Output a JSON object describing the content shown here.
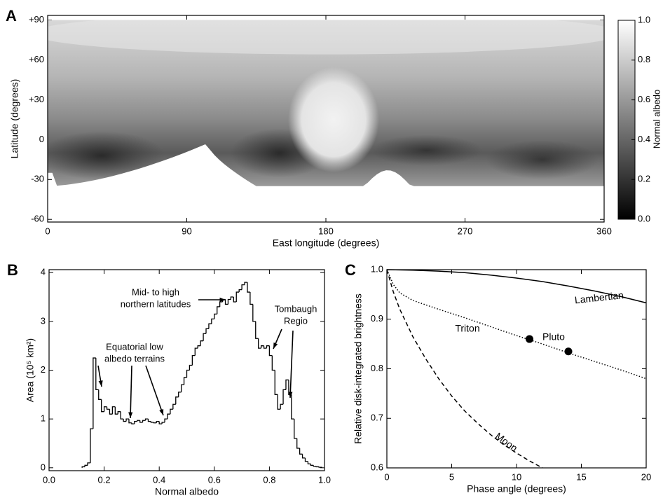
{
  "chart_data": [
    {
      "type": "map",
      "panel": "A",
      "xlabel": "East longitude (degrees)",
      "ylabel": "Latitude (degrees)",
      "xlim": [
        0,
        360
      ],
      "ylim": [
        -62,
        93.5
      ],
      "xticks": [
        0,
        90,
        180,
        270,
        360
      ],
      "yticks": [
        {
          "value": 90,
          "label": "+90"
        },
        {
          "value": 60,
          "label": "+60"
        },
        {
          "value": 30,
          "label": "+30"
        },
        0,
        -30,
        -60
      ],
      "colorbar": {
        "label": "Normal albedo",
        "lim": [
          0,
          1
        ],
        "ticks": [
          {
            "value": 0,
            "label": "0.0"
          },
          0.2,
          0.4,
          0.6,
          0.8,
          {
            "value": 1,
            "label": "1.0"
          }
        ]
      }
    },
    {
      "type": "histogram",
      "panel": "B",
      "xlabel": "Normal albedo",
      "ylabel": "Area (10⁵ km²)",
      "xlim": [
        0,
        1
      ],
      "ylim": [
        -0.06,
        4.06
      ],
      "xticks": [
        {
          "value": 0,
          "label": "0.0"
        },
        0.2,
        0.4,
        0.6,
        0.8,
        {
          "value": 1,
          "label": "1.0"
        }
      ],
      "yticks": [
        0,
        1,
        2,
        3,
        4
      ],
      "bins": [
        0.12,
        0.13,
        0.14,
        0.15,
        0.16,
        0.17,
        0.18,
        0.19,
        0.2,
        0.21,
        0.22,
        0.23,
        0.24,
        0.25,
        0.26,
        0.27,
        0.28,
        0.29,
        0.3,
        0.31,
        0.32,
        0.33,
        0.34,
        0.35,
        0.36,
        0.37,
        0.38,
        0.39,
        0.4,
        0.41,
        0.42,
        0.43,
        0.44,
        0.45,
        0.46,
        0.47,
        0.48,
        0.49,
        0.5,
        0.51,
        0.52,
        0.53,
        0.54,
        0.55,
        0.56,
        0.57,
        0.58,
        0.59,
        0.6,
        0.61,
        0.62,
        0.63,
        0.64,
        0.65,
        0.66,
        0.67,
        0.68,
        0.69,
        0.7,
        0.71,
        0.72,
        0.73,
        0.74,
        0.75,
        0.76,
        0.77,
        0.78,
        0.79,
        0.8,
        0.81,
        0.82,
        0.83,
        0.84,
        0.85,
        0.86,
        0.87,
        0.88,
        0.89,
        0.9,
        0.91,
        0.92,
        0.93,
        0.94,
        0.95,
        0.96,
        0.97,
        0.98,
        0.99
      ],
      "values": [
        0.02,
        0.05,
        0.1,
        0.8,
        2.25,
        1.6,
        1.4,
        1.15,
        1.25,
        1.2,
        1.1,
        1.25,
        1.1,
        1.15,
        1.0,
        0.95,
        1.0,
        0.92,
        0.9,
        0.95,
        0.97,
        0.93,
        0.97,
        1.0,
        0.95,
        0.93,
        0.92,
        0.95,
        0.9,
        0.93,
        1.0,
        1.1,
        1.2,
        1.3,
        1.45,
        1.55,
        1.7,
        1.85,
        2.0,
        2.1,
        2.3,
        2.45,
        2.5,
        2.6,
        2.75,
        2.85,
        2.95,
        3.05,
        3.15,
        3.3,
        3.4,
        3.45,
        3.35,
        3.45,
        3.5,
        3.4,
        3.6,
        3.65,
        3.75,
        3.8,
        3.6,
        3.35,
        3.0,
        2.65,
        2.45,
        2.5,
        2.45,
        2.5,
        2.3,
        2.0,
        1.5,
        1.2,
        1.3,
        1.6,
        1.8,
        1.5,
        1.0,
        0.6,
        0.4,
        0.28,
        0.2,
        0.13,
        0.08,
        0.05,
        0.03,
        0.02,
        0.01
      ],
      "color": "#000000",
      "annotations": [
        {
          "text": [
            "Mid- to high",
            "northern latitudes"
          ]
        },
        {
          "text": [
            "Equatorial low",
            "albedo terrains"
          ]
        },
        {
          "text": [
            "Tombaugh",
            "Regio"
          ]
        }
      ]
    },
    {
      "type": "line",
      "panel": "C",
      "xlabel": "Phase angle (degrees)",
      "ylabel": "Relative disk-integrated brightness",
      "xlim": [
        0,
        20
      ],
      "ylim": [
        0.6,
        1.0
      ],
      "xticks": [
        0,
        5,
        10,
        15,
        20
      ],
      "yticks": [
        0.6,
        0.7,
        0.8,
        0.9,
        {
          "value": 1,
          "label": "1.0"
        }
      ],
      "series": [
        {
          "name": "Lambertian",
          "color": "#000000",
          "style": "solid",
          "x": [
            0,
            2,
            4,
            6,
            8,
            10,
            12,
            14,
            16,
            18,
            20
          ],
          "values": [
            1.0,
            0.999,
            0.997,
            0.994,
            0.989,
            0.983,
            0.976,
            0.967,
            0.957,
            0.946,
            0.933
          ]
        },
        {
          "name": "Triton",
          "color": "#000000",
          "style": "dotted",
          "x": [
            0,
            0.5,
            1,
            2,
            4,
            6,
            8,
            10,
            12,
            14,
            16,
            18,
            20
          ],
          "values": [
            1.0,
            0.97,
            0.953,
            0.938,
            0.92,
            0.903,
            0.885,
            0.867,
            0.85,
            0.832,
            0.815,
            0.798,
            0.78
          ]
        },
        {
          "name": "Moon",
          "color": "#000000",
          "style": "dashed",
          "x": [
            0,
            0.5,
            1,
            2,
            3,
            4,
            5,
            6,
            7,
            8,
            9,
            10,
            11,
            12
          ],
          "values": [
            1.0,
            0.955,
            0.92,
            0.865,
            0.82,
            0.78,
            0.745,
            0.715,
            0.69,
            0.667,
            0.647,
            0.63,
            0.614,
            0.6
          ]
        },
        {
          "name": "Pluto",
          "color": "#000000",
          "style": "points",
          "x": [
            11,
            14
          ],
          "values": [
            0.86,
            0.835
          ]
        }
      ]
    }
  ]
}
